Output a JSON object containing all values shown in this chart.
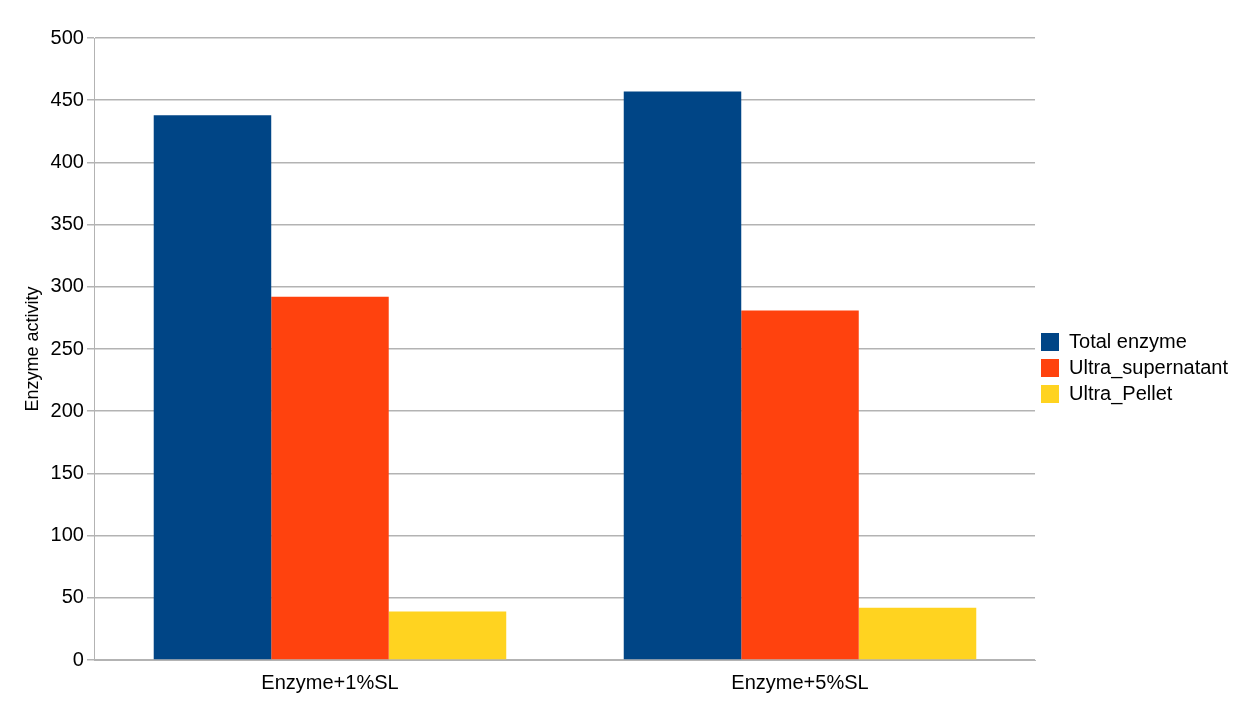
{
  "chart_data": {
    "type": "bar",
    "ylabel": "Enzyme activity",
    "categories": [
      "Enzyme+1%SL",
      "Enzyme+5%SL"
    ],
    "series": [
      {
        "name": "Total enzyme",
        "color": "#004586",
        "values": [
          438,
          457
        ]
      },
      {
        "name": "Ultra_supernatant",
        "color": "#ff420e",
        "values": [
          292,
          281
        ]
      },
      {
        "name": "Ultra_Pellet",
        "color": "#ffd320",
        "values": [
          39,
          42
        ]
      }
    ],
    "ylim": [
      0,
      500
    ],
    "yticks": [
      0,
      50,
      100,
      150,
      200,
      250,
      300,
      350,
      400,
      450,
      500
    ],
    "grid": "y",
    "legend": "right"
  }
}
